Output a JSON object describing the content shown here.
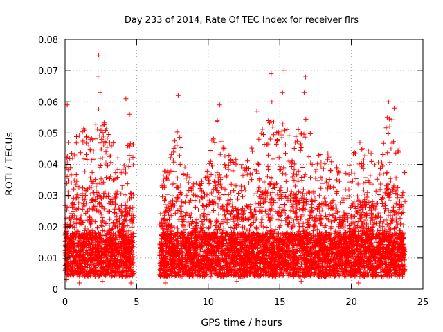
{
  "chart_data": {
    "type": "scatter",
    "title": "Day 233 of 2014, Rate Of TEC Index for receiver flrs",
    "xlabel": "GPS time / hours",
    "ylabel": "ROTI / TECUs",
    "xlim": [
      0,
      25
    ],
    "ylim": [
      0,
      0.08
    ],
    "x_ticks": [
      "0",
      "5",
      "10",
      "15",
      "20",
      "25"
    ],
    "y_ticks": [
      "0",
      "0.01",
      "0.02",
      "0.03",
      "0.04",
      "0.05",
      "0.06",
      "0.07",
      "0.08"
    ],
    "grid": true,
    "marker": "+",
    "color": "#ff0000",
    "data_gap_hours": [
      4.8,
      6.6
    ],
    "series": [
      {
        "name": "ROTI",
        "envelope": {
          "hours": [
            0.0,
            0.2,
            0.4,
            0.8,
            1.2,
            1.6,
            2.0,
            2.4,
            2.8,
            3.2,
            3.6,
            4.0,
            4.4,
            4.7,
            6.6,
            7.0,
            7.5,
            7.9,
            8.4,
            9.0,
            9.6,
            10.0,
            10.5,
            10.8,
            11.2,
            11.7,
            12.2,
            12.8,
            13.3,
            13.8,
            14.2,
            14.5,
            14.9,
            15.2,
            15.6,
            16.0,
            16.4,
            16.8,
            17.2,
            17.6,
            18.0,
            18.5,
            19.0,
            19.6,
            20.2,
            20.8,
            21.4,
            22.0,
            22.5,
            22.8,
            23.2,
            23.6
          ],
          "typical_max": [
            0.025,
            0.045,
            0.04,
            0.045,
            0.048,
            0.05,
            0.052,
            0.055,
            0.05,
            0.045,
            0.04,
            0.035,
            0.05,
            0.045,
            0.03,
            0.035,
            0.04,
            0.05,
            0.035,
            0.03,
            0.035,
            0.04,
            0.05,
            0.055,
            0.04,
            0.04,
            0.035,
            0.04,
            0.045,
            0.05,
            0.05,
            0.055,
            0.05,
            0.052,
            0.05,
            0.045,
            0.05,
            0.055,
            0.045,
            0.04,
            0.04,
            0.04,
            0.035,
            0.035,
            0.04,
            0.042,
            0.04,
            0.04,
            0.05,
            0.055,
            0.045,
            0.035
          ]
        },
        "peaks": [
          {
            "hour": 0.15,
            "roti": 0.059
          },
          {
            "hour": 2.35,
            "roti": 0.075
          },
          {
            "hour": 2.3,
            "roti": 0.068
          },
          {
            "hour": 2.45,
            "roti": 0.063
          },
          {
            "hour": 4.25,
            "roti": 0.061
          },
          {
            "hour": 4.5,
            "roti": 0.056
          },
          {
            "hour": 7.9,
            "roti": 0.062
          },
          {
            "hour": 10.8,
            "roti": 0.059
          },
          {
            "hour": 13.4,
            "roti": 0.057
          },
          {
            "hour": 14.4,
            "roti": 0.069
          },
          {
            "hour": 14.45,
            "roti": 0.06
          },
          {
            "hour": 15.3,
            "roti": 0.07
          },
          {
            "hour": 15.2,
            "roti": 0.063
          },
          {
            "hour": 16.8,
            "roti": 0.068
          },
          {
            "hour": 16.7,
            "roti": 0.063
          },
          {
            "hour": 20.6,
            "roti": 0.047
          },
          {
            "hour": 22.6,
            "roti": 0.06
          },
          {
            "hour": 23.0,
            "roti": 0.058
          },
          {
            "hour": 22.5,
            "roti": 0.055
          },
          {
            "hour": 0.1,
            "roti": 0.003
          },
          {
            "hour": 1.0,
            "roti": 0.002
          },
          {
            "hour": 2.6,
            "roti": 0.0025
          },
          {
            "hour": 4.6,
            "roti": 0.002
          },
          {
            "hour": 7.0,
            "roti": 0.002
          },
          {
            "hour": 12.0,
            "roti": 0.0025
          },
          {
            "hour": 16.5,
            "roti": 0.0025
          },
          {
            "hour": 20.5,
            "roti": 0.002
          }
        ]
      }
    ]
  }
}
